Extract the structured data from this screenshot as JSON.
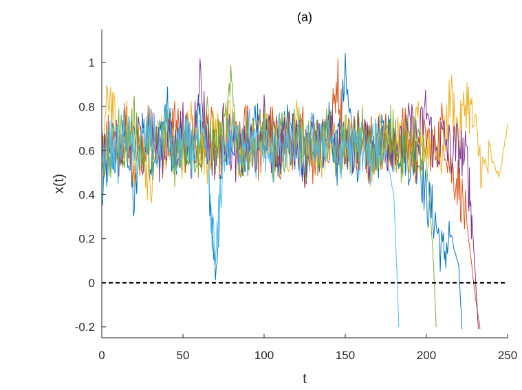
{
  "chart_data": {
    "type": "line",
    "title": "(a)",
    "xlabel": "t",
    "ylabel": "x(t)",
    "xlim": [
      0,
      250
    ],
    "ylim": [
      -0.25,
      1.15
    ],
    "xticks": [
      0,
      50,
      100,
      150,
      200,
      250
    ],
    "xtick_labels": [
      "0",
      "50",
      "100",
      "150",
      "200",
      "250"
    ],
    "yticks": [
      -0.2,
      0,
      0.2,
      0.4,
      0.6,
      0.8,
      1
    ],
    "ytick_labels": [
      "-0.2",
      "0",
      "0.2",
      "0.4",
      "0.6",
      "0.8",
      "1"
    ],
    "grid": false,
    "reference_line": {
      "y": 0,
      "style": "dashed",
      "color": "#000000"
    },
    "series": [
      {
        "color": "#0072BD",
        "x": [
          0,
          5,
          10,
          15,
          20,
          25,
          30,
          35,
          40,
          45,
          50,
          55,
          60,
          65,
          70,
          75,
          80,
          85,
          90,
          95,
          100,
          105,
          110,
          115,
          120,
          125,
          130,
          135,
          140,
          145,
          150,
          155,
          160,
          165,
          170,
          175,
          180,
          185,
          190,
          195,
          200,
          205,
          210,
          215,
          220,
          222
        ],
        "y": [
          0.38,
          0.62,
          0.55,
          0.68,
          0.34,
          0.72,
          0.58,
          0.63,
          0.8,
          0.52,
          0.66,
          0.6,
          0.74,
          0.55,
          0.05,
          0.58,
          0.7,
          0.62,
          0.55,
          0.78,
          0.6,
          0.66,
          0.58,
          0.72,
          0.62,
          0.55,
          0.68,
          0.6,
          0.74,
          0.56,
          0.92,
          0.62,
          0.55,
          0.66,
          0.58,
          0.7,
          0.6,
          0.64,
          0.55,
          0.58,
          0.38,
          0.3,
          0.12,
          0.22,
          0.06,
          -0.21
        ]
      },
      {
        "color": "#D95319",
        "x": [
          0,
          5,
          10,
          15,
          20,
          25,
          30,
          35,
          40,
          45,
          50,
          55,
          60,
          65,
          70,
          75,
          80,
          85,
          90,
          95,
          100,
          105,
          110,
          115,
          120,
          125,
          130,
          135,
          140,
          145,
          150,
          155,
          160,
          165,
          170,
          175,
          180,
          185,
          190,
          195,
          200,
          205,
          210,
          215,
          220,
          225,
          230,
          233
        ],
        "y": [
          0.58,
          0.66,
          0.6,
          0.72,
          0.55,
          0.64,
          0.7,
          0.58,
          0.62,
          0.75,
          0.6,
          0.68,
          0.55,
          0.72,
          0.62,
          0.58,
          0.66,
          0.6,
          0.74,
          0.56,
          0.63,
          0.7,
          0.58,
          0.66,
          0.61,
          0.72,
          0.55,
          0.65,
          0.6,
          0.94,
          0.62,
          0.68,
          0.56,
          0.72,
          0.6,
          0.66,
          0.58,
          0.7,
          0.62,
          0.55,
          0.66,
          0.6,
          0.72,
          0.52,
          0.45,
          0.25,
          -0.05,
          -0.21
        ]
      },
      {
        "color": "#EDB120",
        "x": [
          0,
          5,
          10,
          15,
          20,
          25,
          30,
          35,
          40,
          45,
          50,
          55,
          60,
          65,
          70,
          75,
          80,
          85,
          90,
          95,
          100,
          105,
          110,
          115,
          120,
          125,
          130,
          135,
          140,
          145,
          150,
          155,
          160,
          165,
          170,
          175,
          180,
          185,
          190,
          195,
          200,
          205,
          210,
          215,
          220,
          225,
          230,
          235,
          240,
          245,
          250
        ],
        "y": [
          0.62,
          0.88,
          0.6,
          0.72,
          0.55,
          0.66,
          0.4,
          0.7,
          0.58,
          0.64,
          0.6,
          0.72,
          0.66,
          0.58,
          0.7,
          0.62,
          0.75,
          0.56,
          0.64,
          0.6,
          0.7,
          0.58,
          0.66,
          0.62,
          0.72,
          0.55,
          0.64,
          0.6,
          0.68,
          0.58,
          0.66,
          0.62,
          0.7,
          0.56,
          0.64,
          0.72,
          0.6,
          0.66,
          0.58,
          0.7,
          0.62,
          0.64,
          0.58,
          0.86,
          0.66,
          0.85,
          0.68,
          0.5,
          0.56,
          0.48,
          0.72
        ]
      },
      {
        "color": "#7E2F8E",
        "x": [
          0,
          5,
          10,
          15,
          20,
          25,
          30,
          35,
          40,
          45,
          50,
          55,
          60,
          65,
          70,
          75,
          80,
          85,
          90,
          95,
          100,
          105,
          110,
          115,
          120,
          125,
          130,
          135,
          140,
          145,
          150,
          155,
          160,
          165,
          170,
          175,
          180,
          185,
          190,
          195,
          200,
          205,
          210,
          215,
          220,
          225,
          228,
          230,
          232
        ],
        "y": [
          0.58,
          0.66,
          0.6,
          0.55,
          0.68,
          0.62,
          0.7,
          0.58,
          0.64,
          0.6,
          0.72,
          0.56,
          0.96,
          0.64,
          0.58,
          0.7,
          0.62,
          0.55,
          0.66,
          0.6,
          0.74,
          0.58,
          0.64,
          0.62,
          0.68,
          0.55,
          0.66,
          0.6,
          0.72,
          0.58,
          0.64,
          0.62,
          0.7,
          0.56,
          0.66,
          0.6,
          0.68,
          0.58,
          0.72,
          0.62,
          0.8,
          0.58,
          0.66,
          0.6,
          0.62,
          0.55,
          0.3,
          0.05,
          -0.21
        ]
      },
      {
        "color": "#77AC30",
        "x": [
          0,
          5,
          10,
          15,
          20,
          25,
          30,
          35,
          40,
          45,
          50,
          55,
          60,
          65,
          70,
          75,
          80,
          85,
          90,
          95,
          100,
          105,
          110,
          115,
          120,
          125,
          130,
          135,
          140,
          145,
          150,
          155,
          160,
          165,
          170,
          175,
          180,
          185,
          190,
          195,
          200,
          204,
          206
        ],
        "y": [
          0.6,
          0.55,
          0.68,
          0.62,
          0.72,
          0.58,
          0.64,
          0.6,
          0.7,
          0.56,
          0.66,
          0.62,
          0.58,
          0.72,
          0.6,
          0.66,
          0.88,
          0.58,
          0.64,
          0.62,
          0.7,
          0.55,
          0.66,
          0.6,
          0.72,
          0.58,
          0.64,
          0.62,
          0.68,
          0.56,
          0.66,
          0.6,
          0.7,
          0.58,
          0.64,
          0.62,
          0.72,
          0.56,
          0.66,
          0.6,
          0.55,
          0.15,
          -0.2
        ]
      },
      {
        "color": "#4DBEEE",
        "x": [
          0,
          5,
          10,
          15,
          20,
          25,
          30,
          35,
          40,
          45,
          50,
          55,
          60,
          65,
          70,
          75,
          80,
          85,
          90,
          95,
          100,
          105,
          110,
          115,
          120,
          125,
          130,
          135,
          140,
          145,
          150,
          155,
          160,
          165,
          170,
          175,
          180,
          183
        ],
        "y": [
          0.46,
          0.64,
          0.58,
          0.7,
          0.55,
          0.62,
          0.68,
          0.6,
          0.72,
          0.56,
          0.64,
          0.6,
          0.66,
          0.58,
          0.06,
          0.6,
          0.66,
          0.62,
          0.7,
          0.58,
          0.64,
          0.55,
          0.68,
          0.6,
          0.62,
          0.58,
          0.66,
          0.6,
          0.7,
          0.56,
          0.64,
          0.6,
          0.62,
          0.55,
          0.66,
          0.58,
          0.4,
          -0.2
        ]
      }
    ]
  }
}
